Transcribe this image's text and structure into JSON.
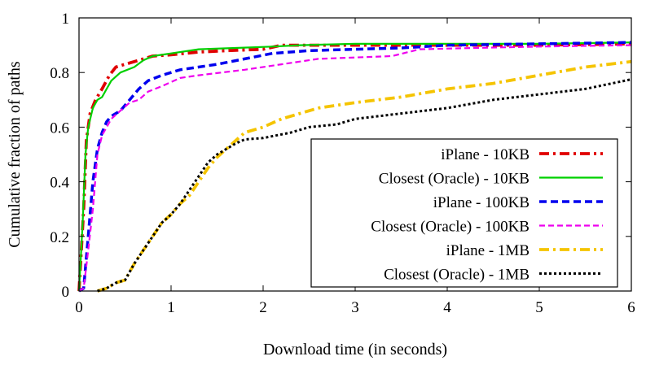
{
  "chart_data": {
    "type": "line",
    "title": "",
    "xlabel": "Download time (in seconds)",
    "ylabel": "Cumulative fraction of paths",
    "xlim": [
      0,
      6
    ],
    "ylim": [
      0,
      1
    ],
    "x_ticks": [
      "0",
      "1",
      "2",
      "3",
      "4",
      "5",
      "6"
    ],
    "y_ticks": [
      "0",
      "0.2",
      "0.4",
      "0.6",
      "0.8",
      "1"
    ],
    "grid": false,
    "legend_position": "lower-right",
    "series": [
      {
        "name": "iPlane - 10KB",
        "color": "#e00000",
        "dash": "dash-dot",
        "points": [
          [
            0.0,
            0.0
          ],
          [
            0.05,
            0.3
          ],
          [
            0.08,
            0.55
          ],
          [
            0.12,
            0.65
          ],
          [
            0.18,
            0.7
          ],
          [
            0.25,
            0.74
          ],
          [
            0.33,
            0.79
          ],
          [
            0.4,
            0.82
          ],
          [
            0.5,
            0.83
          ],
          [
            0.6,
            0.84
          ],
          [
            0.7,
            0.85
          ],
          [
            0.8,
            0.86
          ],
          [
            1.0,
            0.865
          ],
          [
            1.3,
            0.875
          ],
          [
            1.6,
            0.88
          ],
          [
            2.0,
            0.885
          ],
          [
            2.2,
            0.9
          ],
          [
            3.0,
            0.9
          ],
          [
            4.0,
            0.9
          ],
          [
            5.0,
            0.9
          ],
          [
            6.0,
            0.905
          ]
        ]
      },
      {
        "name": "Closest (Oracle) - 10KB",
        "color": "#00d000",
        "dash": "solid",
        "points": [
          [
            0.0,
            0.0
          ],
          [
            0.04,
            0.25
          ],
          [
            0.07,
            0.5
          ],
          [
            0.1,
            0.6
          ],
          [
            0.15,
            0.67
          ],
          [
            0.2,
            0.7
          ],
          [
            0.25,
            0.71
          ],
          [
            0.3,
            0.74
          ],
          [
            0.35,
            0.77
          ],
          [
            0.45,
            0.8
          ],
          [
            0.6,
            0.82
          ],
          [
            0.7,
            0.845
          ],
          [
            0.8,
            0.86
          ],
          [
            0.9,
            0.865
          ],
          [
            1.0,
            0.87
          ],
          [
            1.3,
            0.885
          ],
          [
            1.7,
            0.89
          ],
          [
            2.1,
            0.895
          ],
          [
            2.4,
            0.9
          ],
          [
            3.0,
            0.905
          ],
          [
            4.0,
            0.905
          ],
          [
            5.0,
            0.905
          ],
          [
            6.0,
            0.91
          ]
        ]
      },
      {
        "name": "iPlane - 100KB",
        "color": "#0000ee",
        "dash": "dashed",
        "points": [
          [
            0.0,
            0.0
          ],
          [
            0.05,
            0.01
          ],
          [
            0.1,
            0.2
          ],
          [
            0.15,
            0.4
          ],
          [
            0.2,
            0.52
          ],
          [
            0.25,
            0.58
          ],
          [
            0.3,
            0.62
          ],
          [
            0.35,
            0.64
          ],
          [
            0.45,
            0.66
          ],
          [
            0.55,
            0.7
          ],
          [
            0.65,
            0.74
          ],
          [
            0.75,
            0.77
          ],
          [
            0.9,
            0.79
          ],
          [
            1.1,
            0.81
          ],
          [
            1.5,
            0.83
          ],
          [
            1.8,
            0.85
          ],
          [
            2.1,
            0.87
          ],
          [
            2.5,
            0.88
          ],
          [
            3.0,
            0.885
          ],
          [
            3.5,
            0.89
          ],
          [
            4.0,
            0.9
          ],
          [
            5.0,
            0.905
          ],
          [
            6.0,
            0.91
          ]
        ]
      },
      {
        "name": "Closest (Oracle) - 100KB",
        "color": "#ee00ee",
        "dash": "dashed",
        "points": [
          [
            0.0,
            0.0
          ],
          [
            0.05,
            0.01
          ],
          [
            0.1,
            0.15
          ],
          [
            0.15,
            0.3
          ],
          [
            0.2,
            0.5
          ],
          [
            0.25,
            0.57
          ],
          [
            0.3,
            0.6
          ],
          [
            0.35,
            0.63
          ],
          [
            0.45,
            0.66
          ],
          [
            0.55,
            0.69
          ],
          [
            0.65,
            0.7
          ],
          [
            0.75,
            0.73
          ],
          [
            0.9,
            0.75
          ],
          [
            1.1,
            0.78
          ],
          [
            1.3,
            0.79
          ],
          [
            1.8,
            0.81
          ],
          [
            2.2,
            0.83
          ],
          [
            2.6,
            0.85
          ],
          [
            3.0,
            0.855
          ],
          [
            3.4,
            0.86
          ],
          [
            3.7,
            0.885
          ],
          [
            4.3,
            0.89
          ],
          [
            5.0,
            0.895
          ],
          [
            6.0,
            0.9
          ]
        ]
      },
      {
        "name": "iPlane - 1MB",
        "color": "#f5c400",
        "dash": "dash-dot",
        "points": [
          [
            0.2,
            0.0
          ],
          [
            0.3,
            0.01
          ],
          [
            0.4,
            0.03
          ],
          [
            0.5,
            0.04
          ],
          [
            0.6,
            0.1
          ],
          [
            0.7,
            0.15
          ],
          [
            0.8,
            0.2
          ],
          [
            0.9,
            0.25
          ],
          [
            1.0,
            0.28
          ],
          [
            1.1,
            0.32
          ],
          [
            1.2,
            0.35
          ],
          [
            1.3,
            0.4
          ],
          [
            1.4,
            0.45
          ],
          [
            1.5,
            0.49
          ],
          [
            1.6,
            0.52
          ],
          [
            1.7,
            0.55
          ],
          [
            1.8,
            0.58
          ],
          [
            2.0,
            0.6
          ],
          [
            2.2,
            0.63
          ],
          [
            2.4,
            0.65
          ],
          [
            2.6,
            0.67
          ],
          [
            3.0,
            0.69
          ],
          [
            3.5,
            0.71
          ],
          [
            4.0,
            0.74
          ],
          [
            4.5,
            0.76
          ],
          [
            5.0,
            0.79
          ],
          [
            5.5,
            0.82
          ],
          [
            6.0,
            0.84
          ]
        ]
      },
      {
        "name": "Closest (Oracle) - 1MB",
        "color": "#000000",
        "dash": "dotted",
        "points": [
          [
            0.2,
            0.0
          ],
          [
            0.3,
            0.01
          ],
          [
            0.4,
            0.03
          ],
          [
            0.5,
            0.04
          ],
          [
            0.6,
            0.1
          ],
          [
            0.7,
            0.15
          ],
          [
            0.8,
            0.2
          ],
          [
            0.9,
            0.25
          ],
          [
            1.0,
            0.28
          ],
          [
            1.1,
            0.32
          ],
          [
            1.2,
            0.37
          ],
          [
            1.3,
            0.42
          ],
          [
            1.4,
            0.47
          ],
          [
            1.5,
            0.5
          ],
          [
            1.6,
            0.52
          ],
          [
            1.7,
            0.54
          ],
          [
            1.8,
            0.555
          ],
          [
            2.0,
            0.56
          ],
          [
            2.3,
            0.58
          ],
          [
            2.5,
            0.6
          ],
          [
            2.8,
            0.61
          ],
          [
            3.0,
            0.63
          ],
          [
            3.5,
            0.65
          ],
          [
            4.0,
            0.67
          ],
          [
            4.5,
            0.7
          ],
          [
            5.0,
            0.72
          ],
          [
            5.5,
            0.74
          ],
          [
            6.0,
            0.775
          ]
        ]
      }
    ]
  }
}
